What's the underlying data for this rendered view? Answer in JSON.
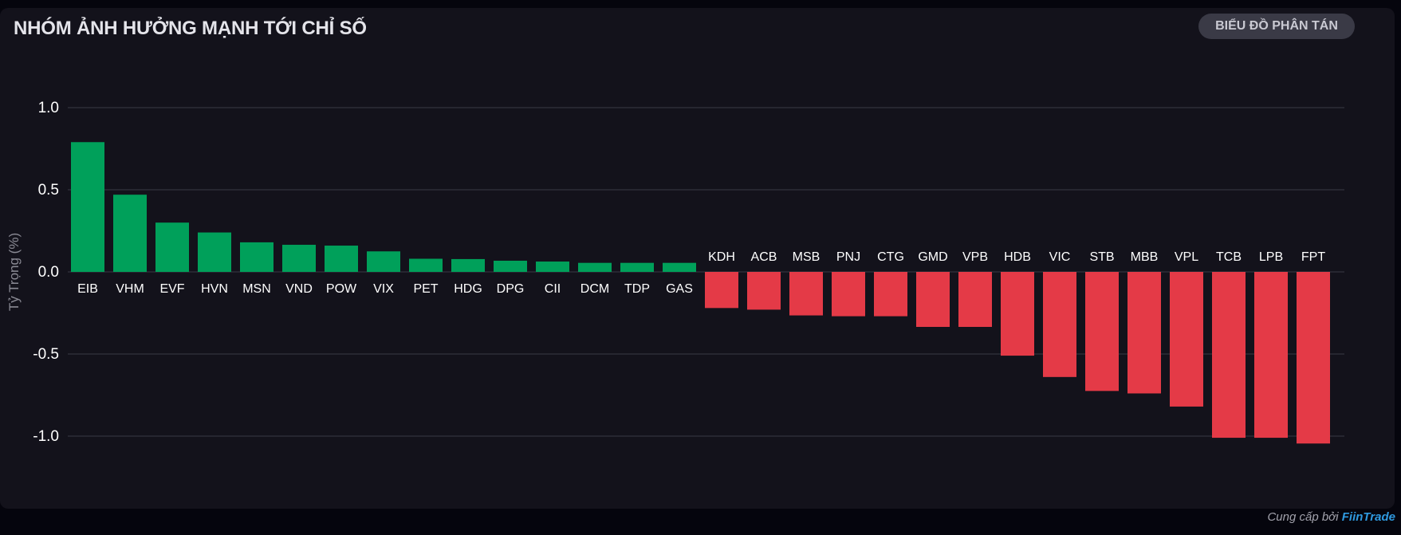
{
  "header": {
    "title": "NHÓM ẢNH HƯỞNG MẠNH TỚI CHỈ SỐ",
    "toggle_label": "BIỂU ĐỒ PHÂN TÁN"
  },
  "footer": {
    "prefix": "Cung cấp bởi",
    "brand": "FiinTrade"
  },
  "colors": {
    "positive": "#00a05a",
    "negative": "#e43a47",
    "grid": "#3a3a44",
    "text": "#ffffff",
    "axis_label": "#8a8a94"
  },
  "chart_data": {
    "type": "bar",
    "ylabel": "Tỷ Trọng (%)",
    "ylim": [
      -1.25,
      1.0
    ],
    "yticks": [
      {
        "value": 1.0,
        "label": "1.0"
      },
      {
        "value": 0.5,
        "label": "0.5"
      },
      {
        "value": 0.0,
        "label": "0.0"
      },
      {
        "value": -0.5,
        "label": "-0.5"
      },
      {
        "value": -1.0,
        "label": "-1.0"
      }
    ],
    "grid": true,
    "categories": [
      "EIB",
      "VHM",
      "EVF",
      "HVN",
      "MSN",
      "VND",
      "POW",
      "VIX",
      "PET",
      "HDG",
      "DPG",
      "CII",
      "DCM",
      "TDP",
      "GAS",
      "KDH",
      "ACB",
      "MSB",
      "PNJ",
      "CTG",
      "GMD",
      "VPB",
      "HDB",
      "VIC",
      "STB",
      "MBB",
      "VPL",
      "TCB",
      "LPB",
      "FPT"
    ],
    "values": [
      0.79,
      0.47,
      0.3,
      0.24,
      0.18,
      0.165,
      0.16,
      0.125,
      0.08,
      0.078,
      0.068,
      0.063,
      0.055,
      0.055,
      0.055,
      -0.22,
      -0.23,
      -0.265,
      -0.27,
      -0.27,
      -0.335,
      -0.335,
      -0.51,
      -0.64,
      -0.725,
      -0.74,
      -0.82,
      -1.01,
      -1.01,
      -1.045
    ]
  }
}
